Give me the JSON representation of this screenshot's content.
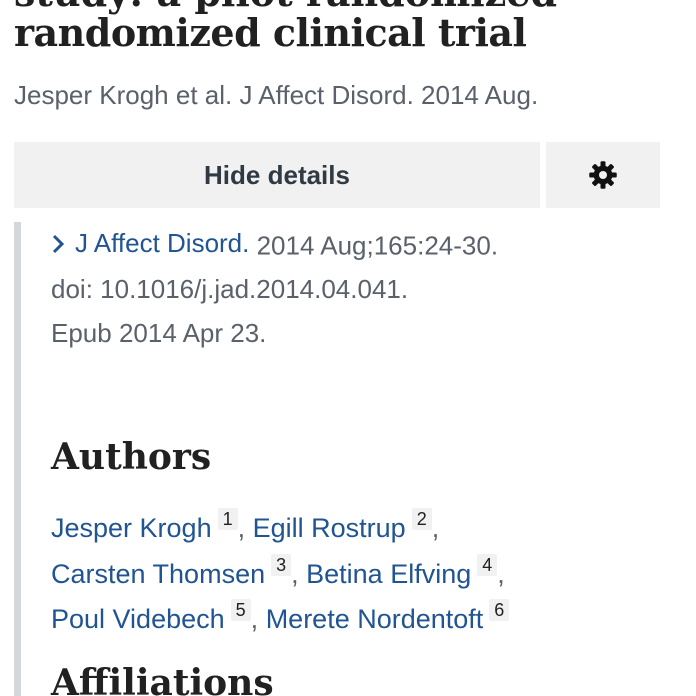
{
  "article": {
    "title_line_top": "study: a pilot randomized",
    "title_line_main": "randomized clinical trial",
    "citation_short": "Jesper Krogh et al. J Affect Disord. 2014 Aug."
  },
  "controls": {
    "details_toggle_label": "Hide details",
    "settings_icon": "gear-icon"
  },
  "details": {
    "journal_link": "J Affect Disord.",
    "journal_rest": " 2014 Aug;165:24-30.",
    "doi": "doi: 10.1016/j.jad.2014.04.041.",
    "epub": "Epub 2014 Apr 23."
  },
  "authors": {
    "heading": "Authors",
    "lines": [
      [
        {
          "name": "Jesper Krogh",
          "aff": "1"
        },
        {
          "name": "Egill Rostrup",
          "aff": "2"
        }
      ],
      [
        {
          "name": "Carsten Thomsen",
          "aff": "3"
        },
        {
          "name": "Betina Elfving",
          "aff": "4"
        }
      ],
      [
        {
          "name": "Poul Videbech",
          "aff": "5"
        },
        {
          "name": "Merete Nordentoft",
          "aff": "6"
        }
      ]
    ]
  },
  "next_section_heading": "Affiliations",
  "colors": {
    "link": "#205493",
    "muted_text": "#5b616b",
    "button_bg": "#f1f1f1",
    "panel_border": "#d6d7d9"
  }
}
